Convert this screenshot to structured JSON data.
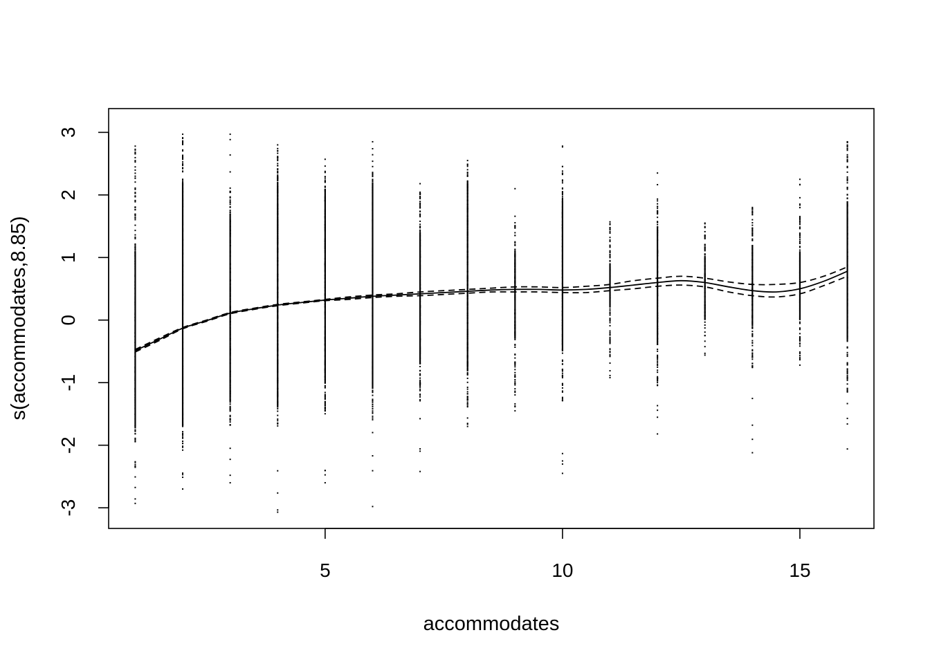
{
  "chart_data": {
    "type": "line",
    "title": "",
    "xlabel": "accommodates",
    "ylabel": "s(accommodates,8.85)",
    "xlim": [
      0.44,
      16.56
    ],
    "ylim": [
      -3.33,
      3.38
    ],
    "x_ticks": [
      5,
      10,
      15
    ],
    "x_tick_labels": [
      "5",
      "10",
      "15"
    ],
    "y_ticks": [
      -3,
      -2,
      -1,
      0,
      1,
      2,
      3
    ],
    "y_tick_labels": [
      "-3",
      "-2",
      "-1",
      "0",
      "1",
      "2",
      "3"
    ],
    "grid": false,
    "legend": "none",
    "series": [
      {
        "style": "solid",
        "x": [
          1,
          1.5,
          2,
          2.5,
          3,
          3.5,
          4,
          4.5,
          5,
          5.5,
          6,
          6.5,
          7,
          7.5,
          8,
          8.5,
          9,
          9.5,
          10,
          10.5,
          11,
          11.5,
          12,
          12.5,
          13,
          13.5,
          14,
          14.5,
          15,
          15.5,
          16
        ],
        "y": [
          -0.49,
          -0.31,
          -0.13,
          -0.01,
          0.11,
          0.18,
          0.24,
          0.28,
          0.32,
          0.35,
          0.38,
          0.4,
          0.42,
          0.44,
          0.46,
          0.48,
          0.49,
          0.49,
          0.48,
          0.49,
          0.52,
          0.56,
          0.6,
          0.63,
          0.6,
          0.53,
          0.47,
          0.45,
          0.5,
          0.62,
          0.78
        ]
      },
      {
        "style": "dashed",
        "x": [
          1,
          1.5,
          2,
          2.5,
          3,
          3.5,
          4,
          4.5,
          5,
          5.5,
          6,
          6.5,
          7,
          7.5,
          8,
          8.5,
          9,
          9.5,
          10,
          10.5,
          11,
          11.5,
          12,
          12.5,
          13,
          13.5,
          14,
          14.5,
          15,
          15.5,
          16
        ],
        "y": [
          -0.47,
          -0.29,
          -0.12,
          0.0,
          0.12,
          0.19,
          0.25,
          0.29,
          0.33,
          0.37,
          0.4,
          0.42,
          0.45,
          0.47,
          0.49,
          0.51,
          0.53,
          0.53,
          0.52,
          0.54,
          0.57,
          0.63,
          0.67,
          0.7,
          0.67,
          0.61,
          0.57,
          0.57,
          0.6,
          0.7,
          0.85
        ]
      },
      {
        "style": "dashed",
        "x": [
          1,
          1.5,
          2,
          2.5,
          3,
          3.5,
          4,
          4.5,
          5,
          5.5,
          6,
          6.5,
          7,
          7.5,
          8,
          8.5,
          9,
          9.5,
          10,
          10.5,
          11,
          11.5,
          12,
          12.5,
          13,
          13.5,
          14,
          14.5,
          15,
          15.5,
          16
        ],
        "y": [
          -0.51,
          -0.33,
          -0.14,
          -0.02,
          0.1,
          0.17,
          0.23,
          0.27,
          0.31,
          0.33,
          0.36,
          0.38,
          0.39,
          0.41,
          0.43,
          0.45,
          0.45,
          0.45,
          0.44,
          0.44,
          0.47,
          0.5,
          0.54,
          0.56,
          0.53,
          0.45,
          0.39,
          0.37,
          0.42,
          0.55,
          0.7
        ]
      }
    ],
    "residual_rug": [
      {
        "x": 1,
        "min": -2.93,
        "max": 2.78,
        "dense_min": -2.38,
        "dense_max": 2.68,
        "solid_min": -1.7,
        "solid_max": 1.1
      },
      {
        "x": 2,
        "min": -2.7,
        "max": 2.97,
        "dense_min": -2.1,
        "dense_max": 2.95,
        "solid_min": -1.7,
        "solid_max": 2.2
      },
      {
        "x": 3,
        "min": -2.6,
        "max": 2.97,
        "dense_min": -1.7,
        "dense_max": 2.2,
        "solid_min": -1.3,
        "solid_max": 1.7
      },
      {
        "x": 4,
        "min": -3.07,
        "max": 2.8,
        "dense_min": -1.7,
        "dense_max": 2.75,
        "solid_min": -1.4,
        "solid_max": 2.2
      },
      {
        "x": 5,
        "min": -2.6,
        "max": 2.57,
        "dense_min": -1.5,
        "dense_max": 2.55,
        "solid_min": -1.0,
        "solid_max": 2.1
      },
      {
        "x": 6,
        "min": -2.98,
        "max": 2.85,
        "dense_min": -1.6,
        "dense_max": 2.47,
        "solid_min": -1.1,
        "solid_max": 2.2
      },
      {
        "x": 7,
        "min": -2.42,
        "max": 2.18,
        "dense_min": -1.3,
        "dense_max": 2.15,
        "solid_min": -0.7,
        "solid_max": 1.4
      },
      {
        "x": 8,
        "min": -1.7,
        "max": 2.55,
        "dense_min": -1.4,
        "dense_max": 2.42,
        "solid_min": -0.8,
        "solid_max": 2.2
      },
      {
        "x": 9,
        "min": -1.45,
        "max": 2.1,
        "dense_min": -1.2,
        "dense_max": 1.5,
        "solid_min": -0.3,
        "solid_max": 1.1
      },
      {
        "x": 10,
        "min": -2.45,
        "max": 2.78,
        "dense_min": -1.3,
        "dense_max": 2.4,
        "solid_min": -0.5,
        "solid_max": 1.9
      },
      {
        "x": 11,
        "min": -0.92,
        "max": 1.57,
        "dense_min": -0.6,
        "dense_max": 1.55,
        "solid_min": 0.2,
        "solid_max": 0.9
      },
      {
        "x": 12,
        "min": -1.82,
        "max": 2.35,
        "dense_min": -1.05,
        "dense_max": 1.9,
        "solid_min": -0.4,
        "solid_max": 1.5
      },
      {
        "x": 13,
        "min": -0.56,
        "max": 1.55,
        "dense_min": -0.28,
        "dense_max": 1.45,
        "solid_min": 0.0,
        "solid_max": 1.0
      },
      {
        "x": 14,
        "min": -2.12,
        "max": 1.8,
        "dense_min": -0.8,
        "dense_max": 1.75,
        "solid_min": -0.1,
        "solid_max": 1.2
      },
      {
        "x": 15,
        "min": -0.72,
        "max": 2.25,
        "dense_min": -0.6,
        "dense_max": 1.9,
        "solid_min": 0.0,
        "solid_max": 1.1
      },
      {
        "x": 16,
        "min": -2.06,
        "max": 2.85,
        "dense_min": -1.15,
        "dense_max": 2.8,
        "solid_min": -0.3,
        "solid_max": 1.9
      }
    ]
  }
}
